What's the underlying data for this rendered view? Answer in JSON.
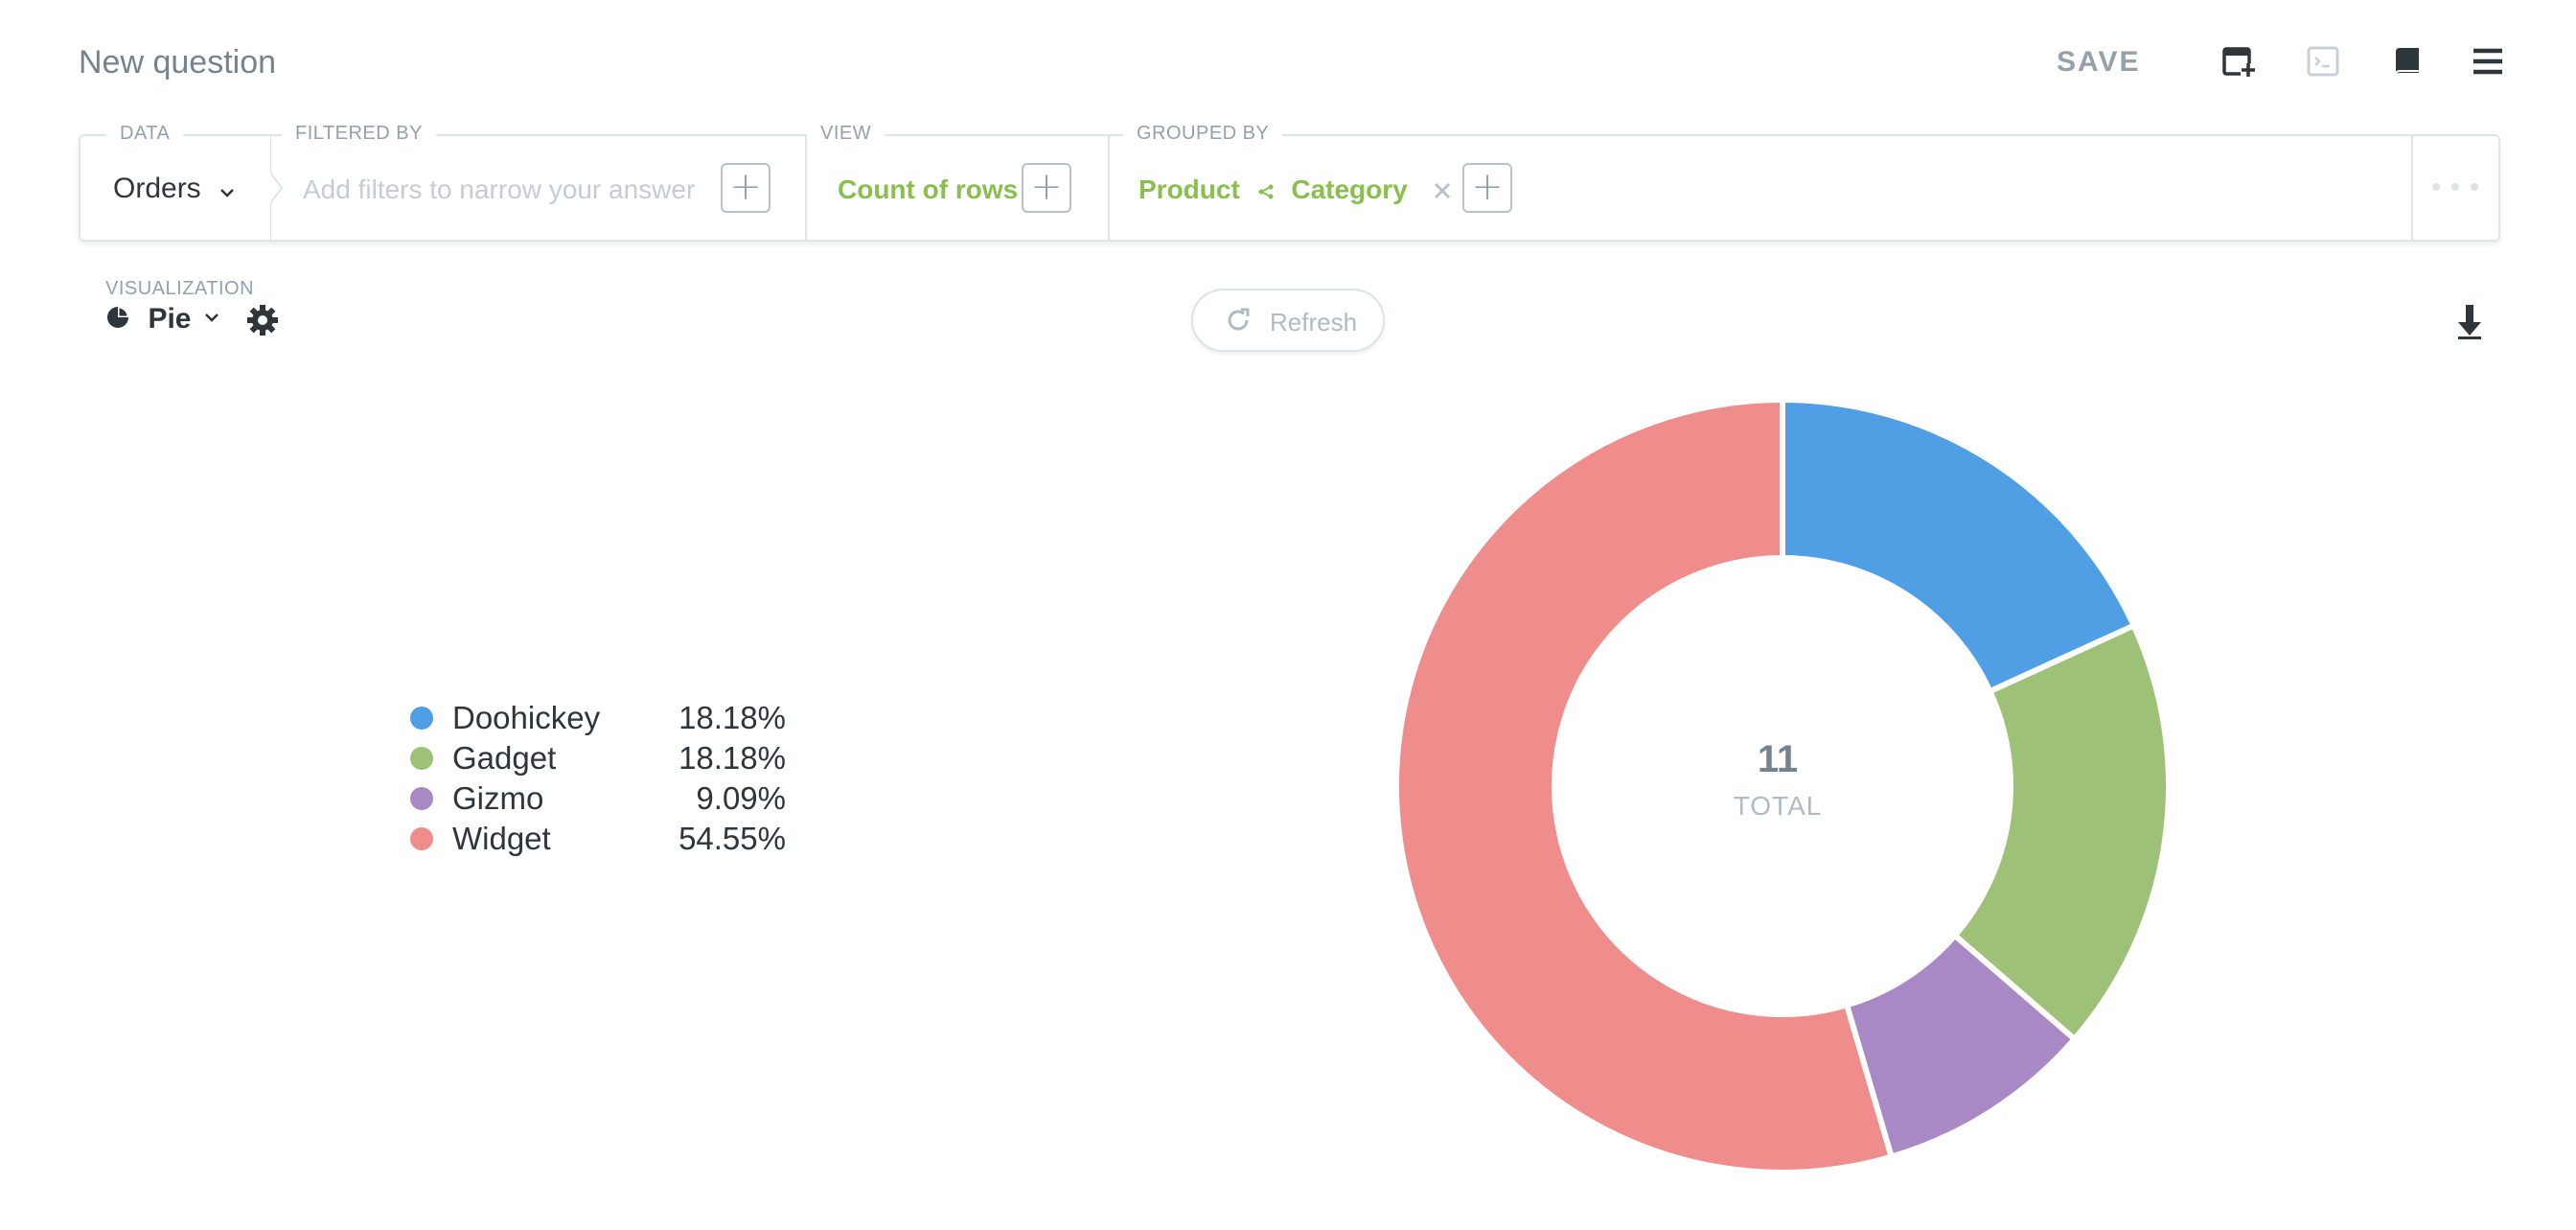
{
  "header": {
    "title": "New question",
    "save_label": "SAVE"
  },
  "query": {
    "data": {
      "label": "DATA",
      "value": "Orders"
    },
    "filter": {
      "label": "FILTERED BY",
      "placeholder": "Add filters to narrow your answer"
    },
    "view": {
      "label": "VIEW",
      "value": "Count of rows"
    },
    "grouped": {
      "label": "GROUPED BY",
      "table": "Product",
      "field": "Category"
    }
  },
  "visualization": {
    "label": "VISUALIZATION",
    "type": "Pie"
  },
  "refresh_label": "Refresh",
  "chart_data": {
    "type": "pie",
    "categories": [
      "Doohickey",
      "Gadget",
      "Gizmo",
      "Widget"
    ],
    "percentages": [
      "18.18%",
      "18.18%",
      "9.09%",
      "54.55%"
    ],
    "values": [
      18.18,
      18.18,
      9.09,
      54.55
    ],
    "colors": [
      "#509ee3",
      "#9cc177",
      "#a989c5",
      "#ef8c8c"
    ],
    "total": "11",
    "total_label": "TOTAL"
  }
}
